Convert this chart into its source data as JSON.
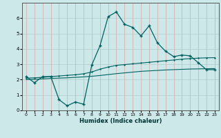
{
  "xlabel": "Humidex (Indice chaleur)",
  "ylabel": "",
  "background_color": "#cce8e8",
  "grid_color_v": "#d4b8b8",
  "grid_color_h": "#b8d4d4",
  "line_color": "#006060",
  "xlim": [
    -0.5,
    23.5
  ],
  "ylim": [
    0,
    7
  ],
  "yticks": [
    0,
    1,
    2,
    3,
    4,
    5,
    6
  ],
  "xticks": [
    0,
    1,
    2,
    3,
    4,
    5,
    6,
    7,
    8,
    9,
    10,
    11,
    12,
    13,
    14,
    15,
    16,
    17,
    18,
    19,
    20,
    21,
    22,
    23
  ],
  "series1_x": [
    0,
    1,
    2,
    3,
    4,
    5,
    6,
    7,
    8,
    9,
    10,
    11,
    12,
    13,
    14,
    15,
    16,
    17,
    18,
    19,
    20,
    21,
    22,
    23
  ],
  "series1_y": [
    2.2,
    1.8,
    2.2,
    2.2,
    0.7,
    0.3,
    0.55,
    0.4,
    2.95,
    4.2,
    6.1,
    6.4,
    5.6,
    5.4,
    4.85,
    5.5,
    4.4,
    3.85,
    3.5,
    3.6,
    3.55,
    3.1,
    2.65,
    2.65
  ],
  "series2_x": [
    0,
    1,
    2,
    3,
    4,
    5,
    6,
    7,
    8,
    9,
    10,
    11,
    12,
    13,
    14,
    15,
    16,
    17,
    18,
    19,
    20,
    21,
    22,
    23
  ],
  "series2_y": [
    2.1,
    2.12,
    2.15,
    2.2,
    2.24,
    2.28,
    2.32,
    2.38,
    2.5,
    2.68,
    2.82,
    2.93,
    2.98,
    3.03,
    3.08,
    3.13,
    3.18,
    3.23,
    3.28,
    3.33,
    3.37,
    3.4,
    3.42,
    3.43
  ],
  "series3_x": [
    0,
    1,
    2,
    3,
    4,
    5,
    6,
    7,
    8,
    9,
    10,
    11,
    12,
    13,
    14,
    15,
    16,
    17,
    18,
    19,
    20,
    21,
    22,
    23
  ],
  "series3_y": [
    2.0,
    2.02,
    2.05,
    2.08,
    2.1,
    2.12,
    2.15,
    2.18,
    2.22,
    2.27,
    2.33,
    2.39,
    2.44,
    2.49,
    2.54,
    2.57,
    2.6,
    2.63,
    2.65,
    2.67,
    2.69,
    2.7,
    2.71,
    2.72
  ]
}
